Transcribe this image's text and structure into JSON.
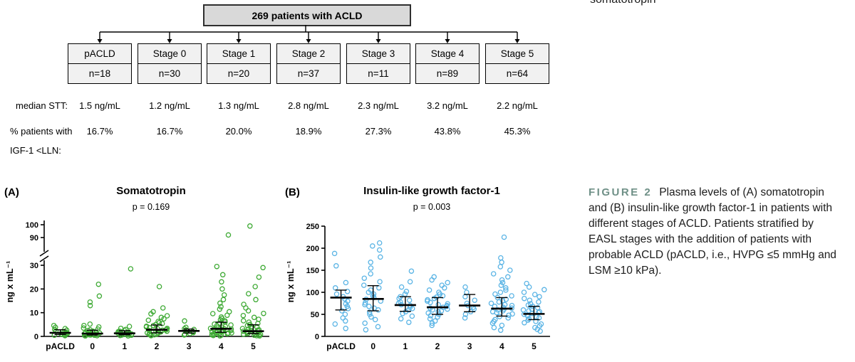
{
  "page": {
    "partial_top_right_text": "somatotropin"
  },
  "flowchart": {
    "root": {
      "label": "269 patients with ACLD"
    },
    "row_labels": {
      "median_stt": "median STT:",
      "pct_line1": "% patients with",
      "pct_line2": "IGF-1 <LLN:"
    },
    "groups": [
      {
        "label": "pACLD",
        "n": "n=18",
        "median_stt": "1.5 ng/mL",
        "pct_igf1_lln": "16.7%"
      },
      {
        "label": "Stage 0",
        "n": "n=30",
        "median_stt": "1.2 ng/mL",
        "pct_igf1_lln": "16.7%"
      },
      {
        "label": "Stage 1",
        "n": "n=20",
        "median_stt": "1.3 ng/mL",
        "pct_igf1_lln": "20.0%"
      },
      {
        "label": "Stage 2",
        "n": "n=37",
        "median_stt": "2.8 ng/mL",
        "pct_igf1_lln": "18.9%"
      },
      {
        "label": "Stage 3",
        "n": "n=11",
        "median_stt": "2.3 ng/mL",
        "pct_igf1_lln": "27.3%"
      },
      {
        "label": "Stage 4",
        "n": "n=89",
        "median_stt": "3.2 ng/mL",
        "pct_igf1_lln": "43.8%"
      },
      {
        "label": "Stage 5",
        "n": "n=64",
        "median_stt": "2.2 ng/mL",
        "pct_igf1_lln": "45.3%"
      }
    ]
  },
  "chart_data": [
    {
      "id": "a",
      "type": "scatter",
      "panel_label": "(A)",
      "title": "Somatotropin",
      "p_value": "p = 0.169",
      "ylabel": "ng x mL⁻¹",
      "point_color": "#3faa35",
      "axis": "broken",
      "break_below": 30,
      "break_above": 90,
      "lower_ticks": [
        0,
        10,
        20,
        30
      ],
      "upper_ticks": [
        90,
        100
      ],
      "categories": [
        "pACLD",
        "0",
        "1",
        "2",
        "3",
        "4",
        "5"
      ],
      "legend": "none",
      "grid": false,
      "groups": [
        {
          "median": 1.5,
          "q1": 0.8,
          "q3": 2.8,
          "values": [
            0.3,
            0.5,
            0.6,
            0.8,
            0.9,
            1.0,
            1.2,
            1.3,
            1.5,
            1.6,
            1.8,
            2.0,
            2.3,
            2.6,
            2.9,
            3.3,
            3.8,
            4.6
          ]
        },
        {
          "median": 1.2,
          "q1": 0.6,
          "q3": 2.6,
          "values": [
            0.2,
            0.3,
            0.4,
            0.5,
            0.6,
            0.7,
            0.8,
            0.9,
            1.0,
            1.1,
            1.2,
            1.3,
            1.4,
            1.6,
            1.8,
            2.0,
            2.2,
            2.5,
            2.8,
            3.1,
            3.5,
            4.0,
            4.6,
            5.2,
            13.0,
            14.5,
            17.0,
            22.0
          ]
        },
        {
          "median": 1.3,
          "q1": 0.7,
          "q3": 2.4,
          "values": [
            0.2,
            0.4,
            0.5,
            0.6,
            0.8,
            0.9,
            1.0,
            1.1,
            1.2,
            1.3,
            1.4,
            1.6,
            1.8,
            2.0,
            2.2,
            2.5,
            2.9,
            3.4,
            4.2,
            28.5
          ]
        },
        {
          "median": 2.8,
          "q1": 1.5,
          "q3": 4.8,
          "values": [
            0.3,
            0.5,
            0.7,
            0.9,
            1.0,
            1.2,
            1.4,
            1.5,
            1.7,
            1.9,
            2.0,
            2.2,
            2.4,
            2.6,
            2.8,
            3.0,
            3.2,
            3.4,
            3.7,
            4.0,
            4.3,
            4.6,
            5.0,
            5.4,
            5.8,
            6.3,
            6.8,
            7.4,
            8.0,
            8.7,
            9.5,
            10.4,
            12.0,
            21.0
          ]
        },
        {
          "median": 2.3,
          "q1": 1.4,
          "q3": 3.1,
          "values": [
            0.6,
            0.9,
            1.2,
            1.6,
            1.9,
            2.3,
            2.6,
            2.9,
            3.2,
            3.8,
            6.5
          ]
        },
        {
          "median": 3.2,
          "q1": 1.7,
          "q3": 6.0,
          "values": [
            0.2,
            0.4,
            0.5,
            0.7,
            0.8,
            1.0,
            1.1,
            1.2,
            1.4,
            1.5,
            1.7,
            1.8,
            2.0,
            2.1,
            2.3,
            2.5,
            2.7,
            2.9,
            3.1,
            3.2,
            3.4,
            3.6,
            3.9,
            4.2,
            4.5,
            4.8,
            5.2,
            5.6,
            6.0,
            6.5,
            7.0,
            7.6,
            8.2,
            8.9,
            9.6,
            10.4,
            11.5,
            12.5,
            14.0,
            15.5,
            17.5,
            20.0,
            23.0,
            26.0,
            29.5,
            92.0
          ]
        },
        {
          "median": 2.2,
          "q1": 1.2,
          "q3": 4.9,
          "values": [
            0.2,
            0.3,
            0.5,
            0.6,
            0.8,
            0.9,
            1.1,
            1.2,
            1.4,
            1.5,
            1.7,
            1.9,
            2.0,
            2.2,
            2.4,
            2.6,
            2.8,
            3.0,
            3.3,
            3.6,
            3.9,
            4.2,
            4.6,
            5.0,
            5.5,
            6.0,
            6.6,
            7.2,
            8.0,
            8.8,
            9.7,
            10.8,
            12.0,
            13.5,
            15.5,
            18.0,
            21.0,
            25.0,
            29.0,
            99.0
          ]
        }
      ]
    },
    {
      "id": "b",
      "type": "scatter",
      "panel_label": "(B)",
      "title": "Insulin-like growth factor-1",
      "p_value": "p = 0.003",
      "ylabel": "ng x mL⁻¹",
      "point_color": "#5ab4e5",
      "axis": "linear",
      "ylim": [
        0,
        250
      ],
      "ticks": [
        0,
        50,
        100,
        150,
        200,
        250
      ],
      "categories": [
        "pACLD",
        "0",
        "1",
        "2",
        "3",
        "4",
        "5"
      ],
      "legend": "none",
      "grid": false,
      "groups": [
        {
          "median": 88,
          "q1": 60,
          "q3": 105,
          "values": [
            18,
            28,
            35,
            42,
            50,
            58,
            63,
            68,
            74,
            80,
            85,
            90,
            96,
            102,
            110,
            122,
            160,
            188
          ]
        },
        {
          "median": 85,
          "q1": 58,
          "q3": 115,
          "values": [
            15,
            22,
            30,
            38,
            44,
            50,
            55,
            60,
            64,
            68,
            72,
            76,
            80,
            84,
            88,
            92,
            96,
            100,
            105,
            110,
            116,
            124,
            132,
            142,
            155,
            168,
            180,
            196,
            205,
            212
          ]
        },
        {
          "median": 71,
          "q1": 57,
          "q3": 90,
          "values": [
            32,
            40,
            46,
            52,
            56,
            60,
            63,
            66,
            70,
            72,
            75,
            78,
            82,
            86,
            90,
            96,
            102,
            112,
            124,
            148
          ]
        },
        {
          "median": 66,
          "q1": 50,
          "q3": 88,
          "values": [
            25,
            30,
            35,
            40,
            44,
            47,
            50,
            53,
            56,
            58,
            60,
            62,
            64,
            66,
            68,
            70,
            72,
            74,
            77,
            80,
            83,
            86,
            89,
            92,
            96,
            100,
            105,
            110,
            116,
            122,
            128,
            135
          ]
        },
        {
          "median": 70,
          "q1": 56,
          "q3": 95,
          "values": [
            42,
            50,
            56,
            62,
            66,
            70,
            75,
            82,
            90,
            100,
            112
          ]
        },
        {
          "median": 63,
          "q1": 46,
          "q3": 88,
          "values": [
            14,
            20,
            25,
            30,
            34,
            38,
            42,
            45,
            48,
            51,
            54,
            56,
            58,
            60,
            62,
            64,
            66,
            68,
            70,
            72,
            75,
            78,
            81,
            84,
            88,
            92,
            96,
            100,
            105,
            110,
            116,
            122,
            128,
            135,
            142,
            150,
            158,
            168,
            178,
            225
          ]
        },
        {
          "median": 51,
          "q1": 38,
          "q3": 68,
          "values": [
            12,
            16,
            20,
            24,
            28,
            31,
            34,
            37,
            40,
            42,
            44,
            46,
            48,
            50,
            52,
            54,
            56,
            58,
            60,
            62,
            65,
            68,
            71,
            74,
            78,
            82,
            86,
            90,
            95,
            100,
            106,
            112,
            120
          ]
        }
      ]
    }
  ],
  "caption": {
    "label": "FIGURE 2",
    "label_color": "#6f9087",
    "text": "Plasma levels of (A) somatotropin and (B) insulin-like growth factor-1 in patients with different stages of ACLD. Patients stratified by EASL stages with the addition of patients with probable ACLD (pACLD, i.e., HVPG ≤5 mmHg and LSM ≥10 kPa)."
  }
}
